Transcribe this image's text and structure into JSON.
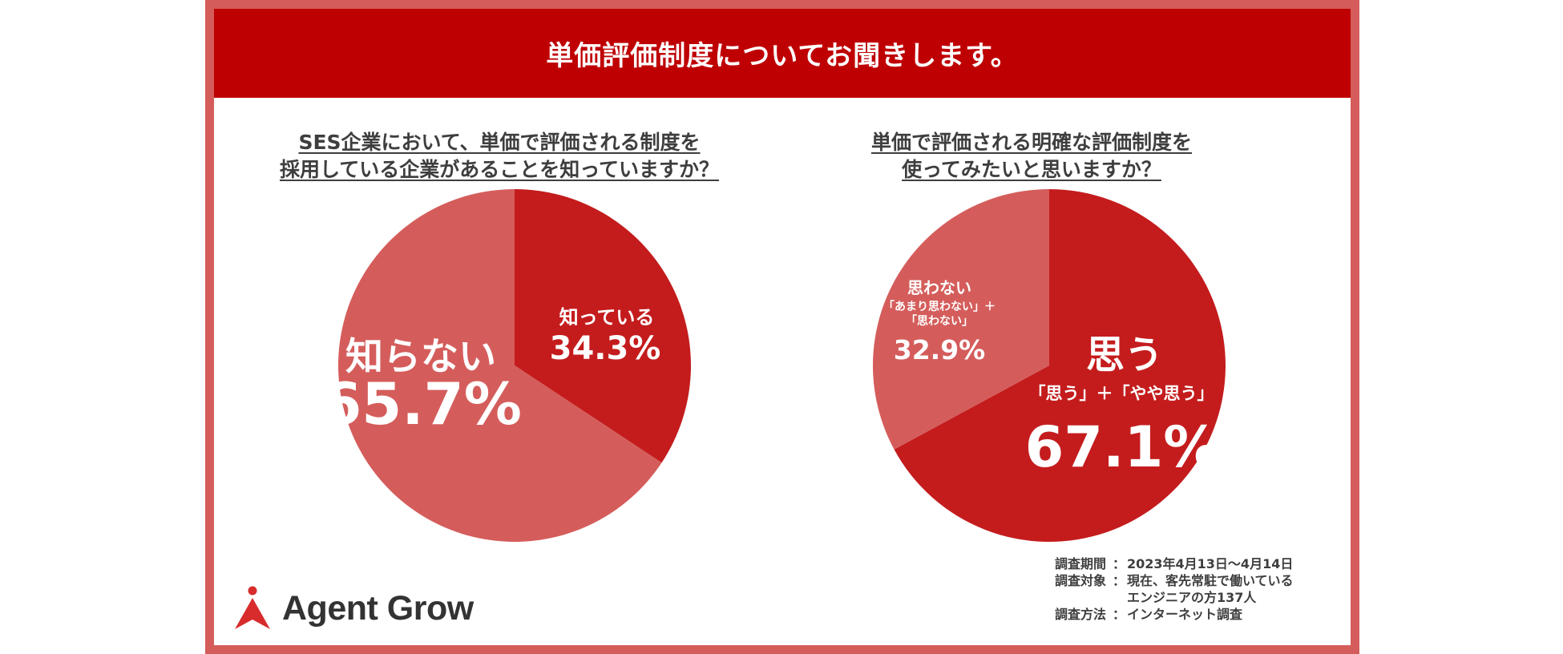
{
  "header": {
    "title": "単価評価制度についてお聞きします。"
  },
  "chart_data": [
    {
      "type": "pie",
      "title_lines": [
        "SES企業において、単価で評価される制度を",
        "採用している企業があることを知っていますか？"
      ],
      "slices": [
        {
          "label": "知っている",
          "value": 34.3,
          "value_label": "34.3%",
          "color": "#c41c1d"
        },
        {
          "label": "知らない",
          "value": 65.7,
          "value_label": "65.7%",
          "color": "#d45d5b"
        }
      ]
    },
    {
      "type": "pie",
      "title_lines": [
        "単価で評価される明確な評価制度を",
        "使ってみたいと思いますか？"
      ],
      "slices": [
        {
          "label": "思う",
          "sublabel": "「思う」＋「やや思う」",
          "value": 67.1,
          "value_label": "67.1%",
          "color": "#c41c1d"
        },
        {
          "label": "思わない",
          "sublabel_lines": [
            "「あまり思わない」＋",
            "「思わない」"
          ],
          "value": 32.9,
          "value_label": "32.9%",
          "color": "#d45d5b"
        }
      ]
    }
  ],
  "survey": {
    "rows": [
      {
        "key": "調査期間",
        "colon": "：",
        "lines": [
          "2023年4月13日〜4月14日"
        ]
      },
      {
        "key": "調査対象",
        "colon": "：",
        "lines": [
          "現在、客先常駐で働いている",
          "エンジニアの方137人"
        ]
      },
      {
        "key": "調査方法",
        "colon": "：",
        "lines": [
          "インターネット調査"
        ]
      }
    ]
  },
  "logo": {
    "text": "Agent Grow",
    "icon": "agent-grow-logo-icon",
    "color": "#d82b2b"
  }
}
